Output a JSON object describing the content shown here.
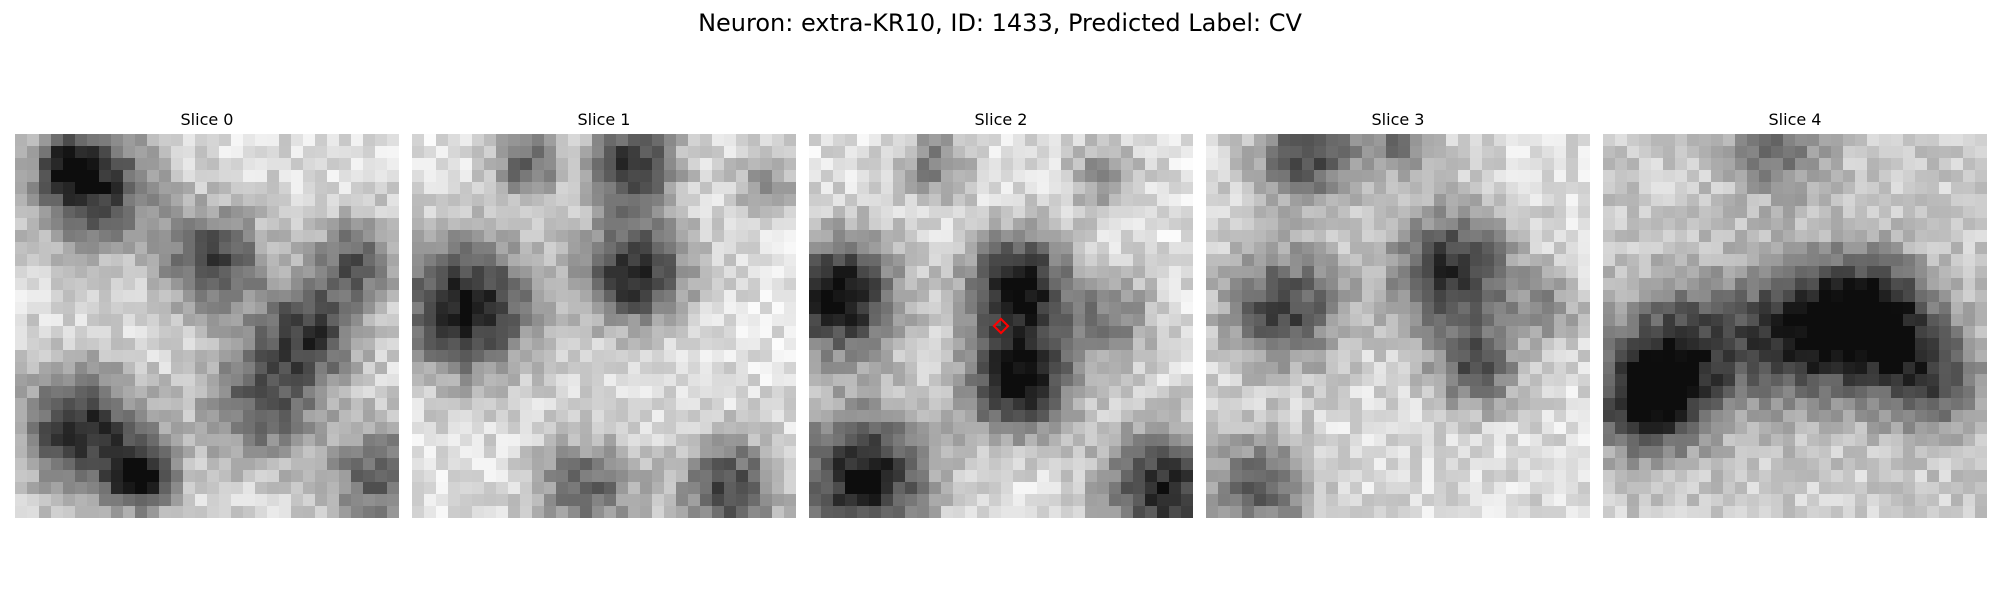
{
  "figure": {
    "title": "Neuron: extra-KR10, ID: 1433, Predicted Label: CV"
  },
  "slices": [
    {
      "title": "Slice 0"
    },
    {
      "title": "Slice 1"
    },
    {
      "title": "Slice 2"
    },
    {
      "title": "Slice 3"
    },
    {
      "title": "Slice 4"
    }
  ],
  "marker": {
    "slice_index": 2,
    "color": "#ff0000",
    "shape": "diamond"
  }
}
